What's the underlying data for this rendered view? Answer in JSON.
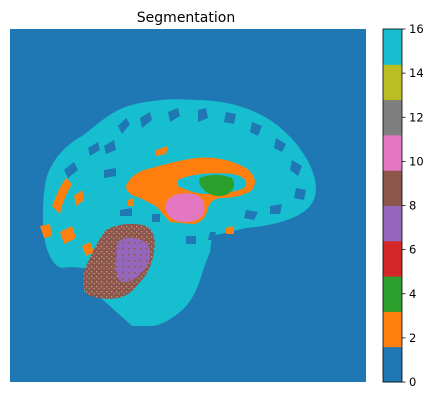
{
  "chart_data": {
    "type": "heatmap",
    "title": "Segmentation",
    "colormap": "tab10",
    "clim": [
      0,
      16
    ],
    "colorbar": {
      "ticks": [
        "0",
        "2",
        "4",
        "6",
        "8",
        "10",
        "12",
        "14",
        "16"
      ],
      "bins": [
        {
          "from": 0,
          "to": 1.6,
          "color": "#1f77b4"
        },
        {
          "from": 1.6,
          "to": 3.2,
          "color": "#ff7f0e"
        },
        {
          "from": 3.2,
          "to": 4.8,
          "color": "#2ca02c"
        },
        {
          "from": 4.8,
          "to": 6.4,
          "color": "#d62728"
        },
        {
          "from": 6.4,
          "to": 8.0,
          "color": "#9467bd"
        },
        {
          "from": 8.0,
          "to": 9.6,
          "color": "#8c564b"
        },
        {
          "from": 9.6,
          "to": 11.2,
          "color": "#e377c2"
        },
        {
          "from": 11.2,
          "to": 12.8,
          "color": "#7f7f7f"
        },
        {
          "from": 12.8,
          "to": 14.4,
          "color": "#bcbd22"
        },
        {
          "from": 14.4,
          "to": 16,
          "color": "#17becf"
        }
      ]
    },
    "image": {
      "background_label": 0,
      "regions": [
        {
          "label": 16,
          "color": "#17becf"
        },
        {
          "label": 2,
          "color": "#ff7f0e"
        },
        {
          "label": 4,
          "color": "#2ca02c"
        },
        {
          "label": 10,
          "color": "#e377c2"
        },
        {
          "label": 8,
          "color": "#8c564b"
        },
        {
          "label": 7,
          "color": "#9467bd"
        }
      ]
    },
    "axes": "off"
  }
}
